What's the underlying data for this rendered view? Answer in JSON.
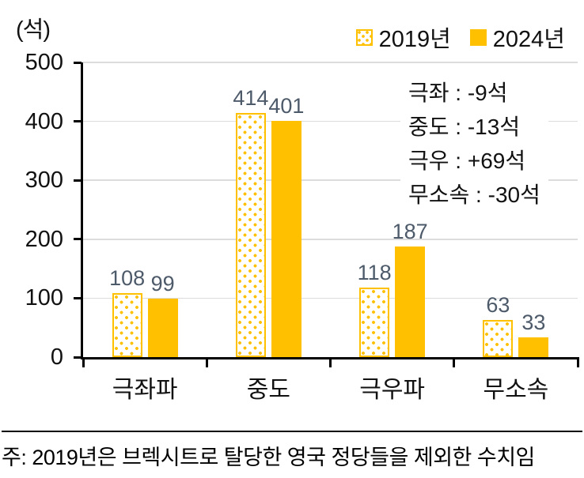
{
  "unit_label": "(석)",
  "legend": [
    {
      "label": "2019년",
      "swatch": "dotted"
    },
    {
      "label": "2024년",
      "swatch": "solid"
    }
  ],
  "colors": {
    "bar_yellow": "#FFC000",
    "gridline": "#DCDCDC",
    "axis": "#000000",
    "value_label": "#4D5A6A"
  },
  "chart_data": {
    "type": "bar",
    "categories": [
      "극좌파",
      "중도",
      "극우파",
      "무소속"
    ],
    "series": [
      {
        "name": "2019년",
        "style": "dotted",
        "values": [
          108,
          414,
          118,
          63
        ]
      },
      {
        "name": "2024년",
        "style": "solid",
        "values": [
          99,
          401,
          187,
          33
        ]
      }
    ],
    "title": "",
    "xlabel": "",
    "ylabel": "(석)",
    "ylim": [
      0,
      500
    ],
    "yticks": [
      0,
      100,
      200,
      300,
      400,
      500
    ],
    "grid": true,
    "legend_position": "top-right"
  },
  "annotation": {
    "lines": [
      "극좌 : -9석",
      "중도 : -13석",
      "극우 : +69석",
      "무소속 : -30석"
    ]
  },
  "footnote": "주: 2019년은 브렉시트로 탈당한 영국 정당들을 제외한 수치임"
}
